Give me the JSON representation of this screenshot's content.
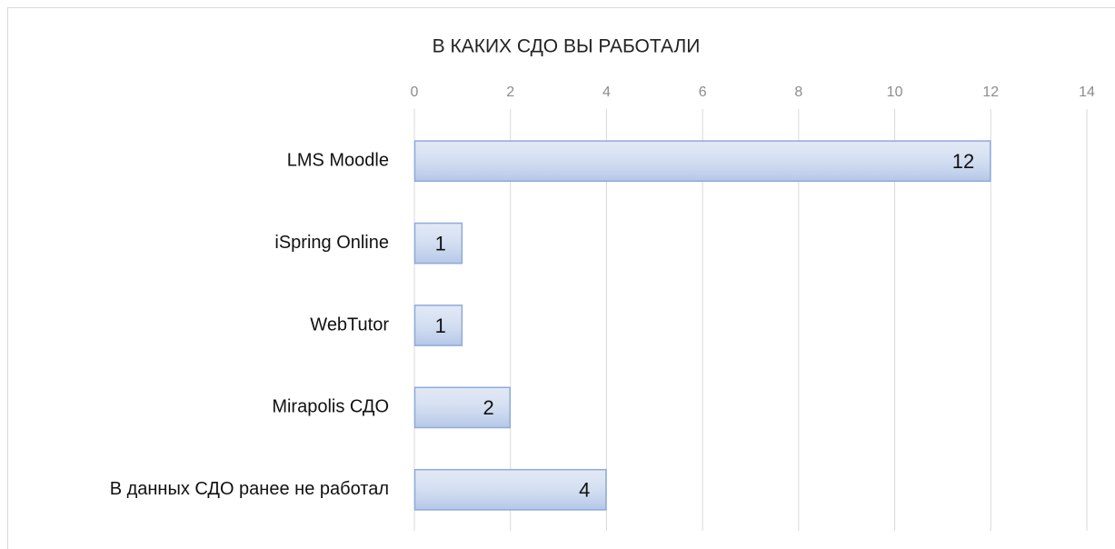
{
  "chart_data": {
    "type": "bar",
    "title": "В КАКИХ СДО ВЫ РАБОТАЛИ",
    "categories": [
      "LMS Moodle",
      "iSpring Online",
      "WebTutor",
      "Mirapolis СДО",
      "В данных СДО ранее не работал"
    ],
    "values": [
      12,
      1,
      1,
      2,
      4
    ],
    "color": "#b4c7e7",
    "xlim": [
      0,
      14
    ],
    "xticks": [
      0,
      2,
      4,
      6,
      8,
      10,
      12,
      14
    ],
    "grid": true
  }
}
